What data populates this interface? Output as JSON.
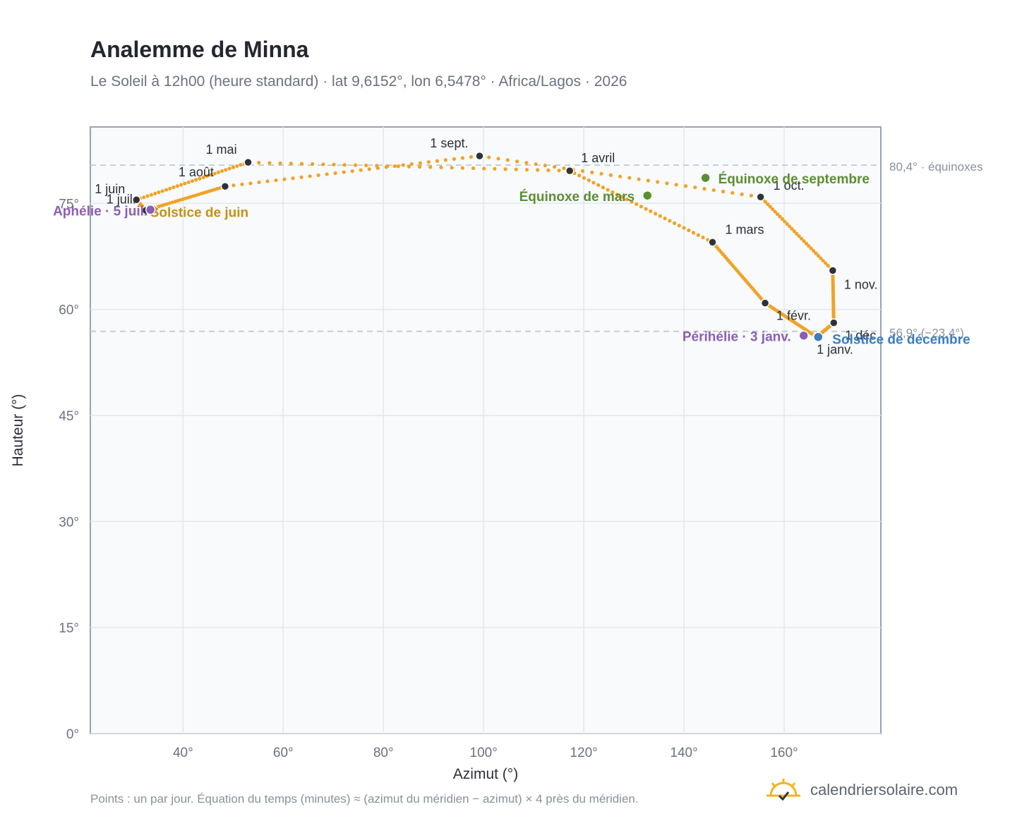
{
  "header": {
    "title": "Analemme de Minna",
    "subtitle": "Le Soleil à 12h00 (heure standard) · lat 9,6152°, lon 6,5478° · Africa/Lagos · 2026"
  },
  "footer": {
    "note": "Points : un par jour. Équation du temps (minutes) ≈ (azimut du méridien − azimut) × 4 près du méridien.",
    "brand": "calendriersolaire.com"
  },
  "chart_data": {
    "type": "scatter",
    "title": "Analemme de Minna",
    "xlabel": "Azimut (°)",
    "ylabel": "Hauteur (°)",
    "xlim": [
      21.5,
      179.3
    ],
    "ylim": [
      0,
      85.8
    ],
    "xticks": [
      40,
      60,
      80,
      100,
      120,
      140,
      160
    ],
    "yticks": [
      0,
      15,
      30,
      45,
      60,
      75
    ],
    "xtick_labels": [
      "40°",
      "60°",
      "80°",
      "100°",
      "120°",
      "140°",
      "160°"
    ],
    "ytick_labels": [
      "0°",
      "15°",
      "30°",
      "45°",
      "60°",
      "75°"
    ],
    "grid": true,
    "series_color": "#f0a326",
    "month_marker_color": "#2f3338",
    "month_points": [
      {
        "label": "1 janv.",
        "x": 166.5,
        "y": 56.1
      },
      {
        "label": "1 févr.",
        "x": 156.2,
        "y": 60.9
      },
      {
        "label": "1 mars",
        "x": 145.7,
        "y": 69.5
      },
      {
        "label": "1 avril",
        "x": 117.2,
        "y": 79.6
      },
      {
        "label": "1 mai",
        "x": 53.0,
        "y": 80.8
      },
      {
        "label": "1 juin",
        "x": 30.7,
        "y": 75.5
      },
      {
        "label": "1 juil.",
        "x": 32.6,
        "y": 74.0
      },
      {
        "label": "1 août",
        "x": 48.4,
        "y": 77.4
      },
      {
        "label": "1 sept.",
        "x": 99.2,
        "y": 81.7
      },
      {
        "label": "1 oct.",
        "x": 155.3,
        "y": 75.9
      },
      {
        "label": "1 nov.",
        "x": 169.7,
        "y": 65.5
      },
      {
        "label": "1 déc.",
        "x": 169.9,
        "y": 58.1
      }
    ],
    "special_points": [
      {
        "label": "Équinoxe de mars",
        "x": 132.7,
        "y": 76.1,
        "color": "#5a8f32"
      },
      {
        "label": "Équinoxe de septembre",
        "x": 144.3,
        "y": 78.6,
        "color": "#5a8f32"
      },
      {
        "label": "Solstice de juin",
        "x": 34.0,
        "y": 74.1,
        "color": "#c8900f"
      },
      {
        "label": "Solstice de décembre",
        "x": 166.8,
        "y": 56.1,
        "color": "#3a7dc2"
      },
      {
        "label": "Périhélie · 3 janv.",
        "x": 163.9,
        "y": 56.3,
        "color": "#8c5fb5"
      },
      {
        "label": "Aphélie · 5 juil.",
        "x": 33.5,
        "y": 74.1,
        "color": "#8c5fb5"
      }
    ],
    "reference_lines": [
      {
        "y": 80.4,
        "label": "80,4° · équinoxes"
      },
      {
        "y": 56.9,
        "label": "56,9° (−23,4°)"
      }
    ]
  }
}
